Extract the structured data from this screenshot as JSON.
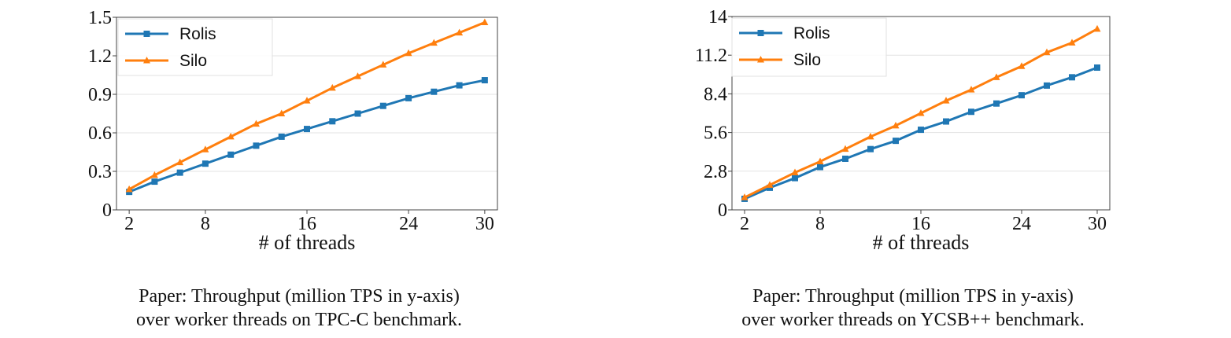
{
  "chart_data": [
    {
      "type": "line",
      "xlabel": "# of threads",
      "ylabel": "",
      "xlim": [
        1,
        31
      ],
      "ylim": [
        0,
        1.5
      ],
      "xticks": [
        2,
        8,
        16,
        24,
        30
      ],
      "yticks": [
        0,
        0.3,
        0.6,
        0.9,
        1.2,
        1.5
      ],
      "ytick_labels": [
        "0",
        "0.3",
        "0.6",
        "0.9",
        "1.2",
        "1.5"
      ],
      "grid": true,
      "legend_position": "top-left",
      "x": [
        2,
        4,
        6,
        8,
        10,
        12,
        14,
        16,
        18,
        20,
        22,
        24,
        26,
        28,
        30
      ],
      "series": [
        {
          "name": "Rolis",
          "color": "#1f77b4",
          "marker": "square",
          "values": [
            0.14,
            0.22,
            0.29,
            0.36,
            0.43,
            0.5,
            0.57,
            0.63,
            0.69,
            0.75,
            0.81,
            0.87,
            0.92,
            0.97,
            1.01
          ]
        },
        {
          "name": "Silo",
          "color": "#ff7f0e",
          "marker": "triangle",
          "values": [
            0.16,
            0.27,
            0.37,
            0.47,
            0.57,
            0.67,
            0.75,
            0.85,
            0.95,
            1.04,
            1.13,
            1.22,
            1.3,
            1.38,
            1.46
          ]
        }
      ],
      "caption": [
        "Paper: Throughput (million TPS in y-axis)",
        "over worker threads on TPC-C benchmark."
      ]
    },
    {
      "type": "line",
      "xlabel": "# of threads",
      "ylabel": "",
      "xlim": [
        1,
        31
      ],
      "ylim": [
        0,
        14
      ],
      "xticks": [
        2,
        8,
        16,
        24,
        30
      ],
      "yticks": [
        0,
        2.8,
        5.6,
        8.4,
        11.2,
        14
      ],
      "ytick_labels": [
        "0",
        "2.8",
        "5.6",
        "8.4",
        "11.2",
        "14"
      ],
      "grid": true,
      "legend_position": "top-left",
      "x": [
        2,
        4,
        6,
        8,
        10,
        12,
        14,
        16,
        18,
        20,
        22,
        24,
        26,
        28,
        30
      ],
      "series": [
        {
          "name": "Rolis",
          "color": "#1f77b4",
          "marker": "square",
          "values": [
            0.8,
            1.6,
            2.3,
            3.1,
            3.7,
            4.4,
            5.0,
            5.8,
            6.4,
            7.1,
            7.7,
            8.3,
            9.0,
            9.6,
            10.3
          ]
        },
        {
          "name": "Silo",
          "color": "#ff7f0e",
          "marker": "triangle",
          "values": [
            0.9,
            1.8,
            2.7,
            3.5,
            4.4,
            5.3,
            6.1,
            7.0,
            7.9,
            8.7,
            9.6,
            10.4,
            11.4,
            12.1,
            13.1
          ]
        }
      ],
      "caption": [
        "Paper: Throughput (million TPS in y-axis)",
        "over worker threads on YCSB++ benchmark."
      ]
    }
  ]
}
